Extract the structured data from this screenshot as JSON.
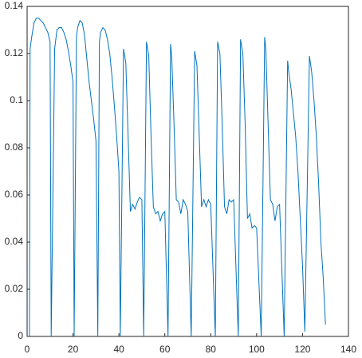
{
  "chart_data": {
    "type": "line",
    "x": [
      1,
      1.3,
      2,
      3,
      4,
      5,
      6,
      7,
      8,
      9,
      10,
      10.5,
      12,
      13,
      14,
      15,
      16,
      17,
      18,
      19,
      20,
      20.5,
      21.5,
      22,
      23,
      24,
      25,
      26,
      27,
      28,
      29,
      30,
      30.8,
      31.5,
      32,
      33,
      34,
      35,
      36,
      37,
      38,
      39,
      40,
      40.6,
      42,
      43,
      44,
      45,
      46,
      47,
      48,
      49,
      50,
      50.8,
      52,
      53,
      54,
      55,
      56,
      57,
      58,
      59,
      60,
      61.4,
      62.5,
      63,
      64,
      65,
      66,
      67,
      68,
      69,
      70,
      71.5,
      73,
      74,
      75,
      76,
      77,
      78,
      79,
      80,
      82,
      83,
      84,
      85,
      86,
      87,
      88,
      89,
      90,
      92,
      93,
      94,
      95,
      96,
      97,
      98,
      99,
      100,
      102,
      103.5,
      104,
      105,
      106,
      107,
      108,
      109,
      110,
      112,
      113.5,
      114,
      115,
      116,
      117,
      118,
      119,
      120,
      121,
      123,
      124,
      125,
      126,
      127,
      128,
      129,
      130
    ],
    "series": [
      {
        "color": "#0072bd",
        "values": [
          0,
          0.122,
          0.127,
          0.133,
          0.135,
          0.135,
          0.134,
          0.133,
          0.131,
          0.129,
          0.125,
          0,
          0.122,
          0.13,
          0.131,
          0.131,
          0.129,
          0.126,
          0.121,
          0.115,
          0.108,
          0,
          0.127,
          0.131,
          0.134,
          0.133,
          0.128,
          0.118,
          0.108,
          0.1,
          0.092,
          0.083,
          0,
          0.125,
          0.129,
          0.131,
          0.13,
          0.126,
          0.12,
          0.11,
          0.098,
          0.085,
          0.07,
          0,
          0.122,
          0.116,
          0.085,
          0.053,
          0.056,
          0.054,
          0.057,
          0.059,
          0.058,
          0,
          0.125,
          0.119,
          0.085,
          0.055,
          0.052,
          0.053,
          0.049,
          0.052,
          0.053,
          0,
          0.124,
          0.119,
          0.09,
          0.058,
          0.057,
          0.052,
          0.058,
          0.056,
          0.053,
          0,
          0.121,
          0.115,
          0.085,
          0.055,
          0.058,
          0.055,
          0.058,
          0.056,
          0,
          0.125,
          0.12,
          0.09,
          0.055,
          0.052,
          0.058,
          0.057,
          0.058,
          0,
          0.126,
          0.12,
          0.09,
          0.05,
          0.052,
          0.046,
          0.047,
          0.046,
          0,
          0.127,
          0.122,
          0.09,
          0.058,
          0.056,
          0.049,
          0.055,
          0.056,
          0,
          0.117,
          0.112,
          0.105,
          0.095,
          0.085,
          0.07,
          0.05,
          0.03,
          0.002,
          0.119,
          0.112,
          0.1,
          0.085,
          0.065,
          0.04,
          0.025,
          0.005
        ]
      }
    ],
    "xlim": [
      0,
      140
    ],
    "ylim": [
      0,
      0.14
    ],
    "xticks": [
      0,
      20,
      40,
      60,
      80,
      100,
      120,
      140
    ],
    "yticks": [
      0,
      0.02,
      0.04,
      0.06,
      0.08,
      0.1,
      0.12,
      0.14
    ],
    "box": true
  }
}
